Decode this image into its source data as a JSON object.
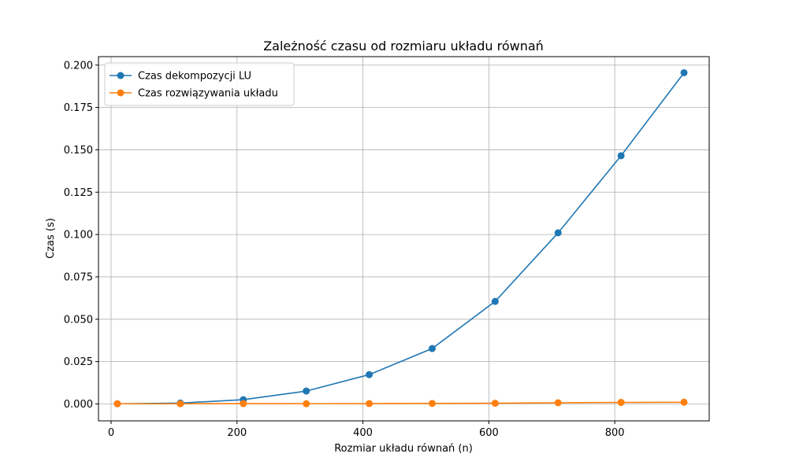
{
  "chart_data": {
    "type": "line",
    "title": "Zależność czasu od rozmiaru układu równań",
    "xlabel": "Rozmiar układu równań (n)",
    "ylabel": "Czas (s)",
    "xlim": [
      -20,
      950
    ],
    "ylim": [
      -0.01,
      0.205
    ],
    "x_ticks": [
      0,
      200,
      400,
      600,
      800
    ],
    "x_tick_labels": [
      "0",
      "200",
      "400",
      "600",
      "800"
    ],
    "y_ticks": [
      0.0,
      0.025,
      0.05,
      0.075,
      0.1,
      0.125,
      0.15,
      0.175,
      0.2
    ],
    "y_tick_labels": [
      "0.000",
      "0.025",
      "0.050",
      "0.075",
      "0.100",
      "0.125",
      "0.150",
      "0.175",
      "0.200"
    ],
    "grid": true,
    "legend_position": "top-left",
    "x": [
      10,
      110,
      210,
      310,
      410,
      510,
      610,
      710,
      810,
      910
    ],
    "series": [
      {
        "name": "Czas dekompozycji LU",
        "color": "#1f77b4",
        "values": [
          0.0001,
          0.0005,
          0.0025,
          0.0076,
          0.0173,
          0.0327,
          0.0605,
          0.101,
          0.1465,
          0.1955
        ]
      },
      {
        "name": "Czas rozwiązywania układu",
        "color": "#ff7f0e",
        "values": [
          0.0001,
          0.0001,
          0.0002,
          0.0001,
          0.0002,
          0.0003,
          0.0004,
          0.0007,
          0.0009,
          0.001
        ]
      }
    ]
  }
}
